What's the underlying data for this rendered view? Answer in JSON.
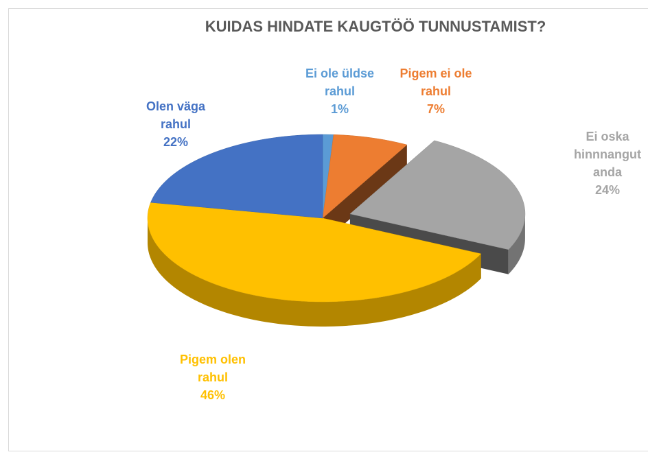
{
  "chart_data": {
    "type": "pie",
    "title": "KUIDAS HINDATE KAUGTÖÖ TUNNUSTAMIST?",
    "categories": [
      "Ei ole üldse rahul",
      "Pigem ei ole rahul",
      "Ei oska hinnnangut anda",
      "Pigem olen rahul",
      "Olen väga rahul"
    ],
    "values": [
      1,
      7,
      24,
      46,
      22
    ],
    "value_labels": [
      "1%",
      "7%",
      "24%",
      "46%",
      "22%"
    ],
    "colors": [
      "#5b9bd5",
      "#ed7d31",
      "#a5a5a5",
      "#ffc000",
      "#4472c4"
    ]
  }
}
